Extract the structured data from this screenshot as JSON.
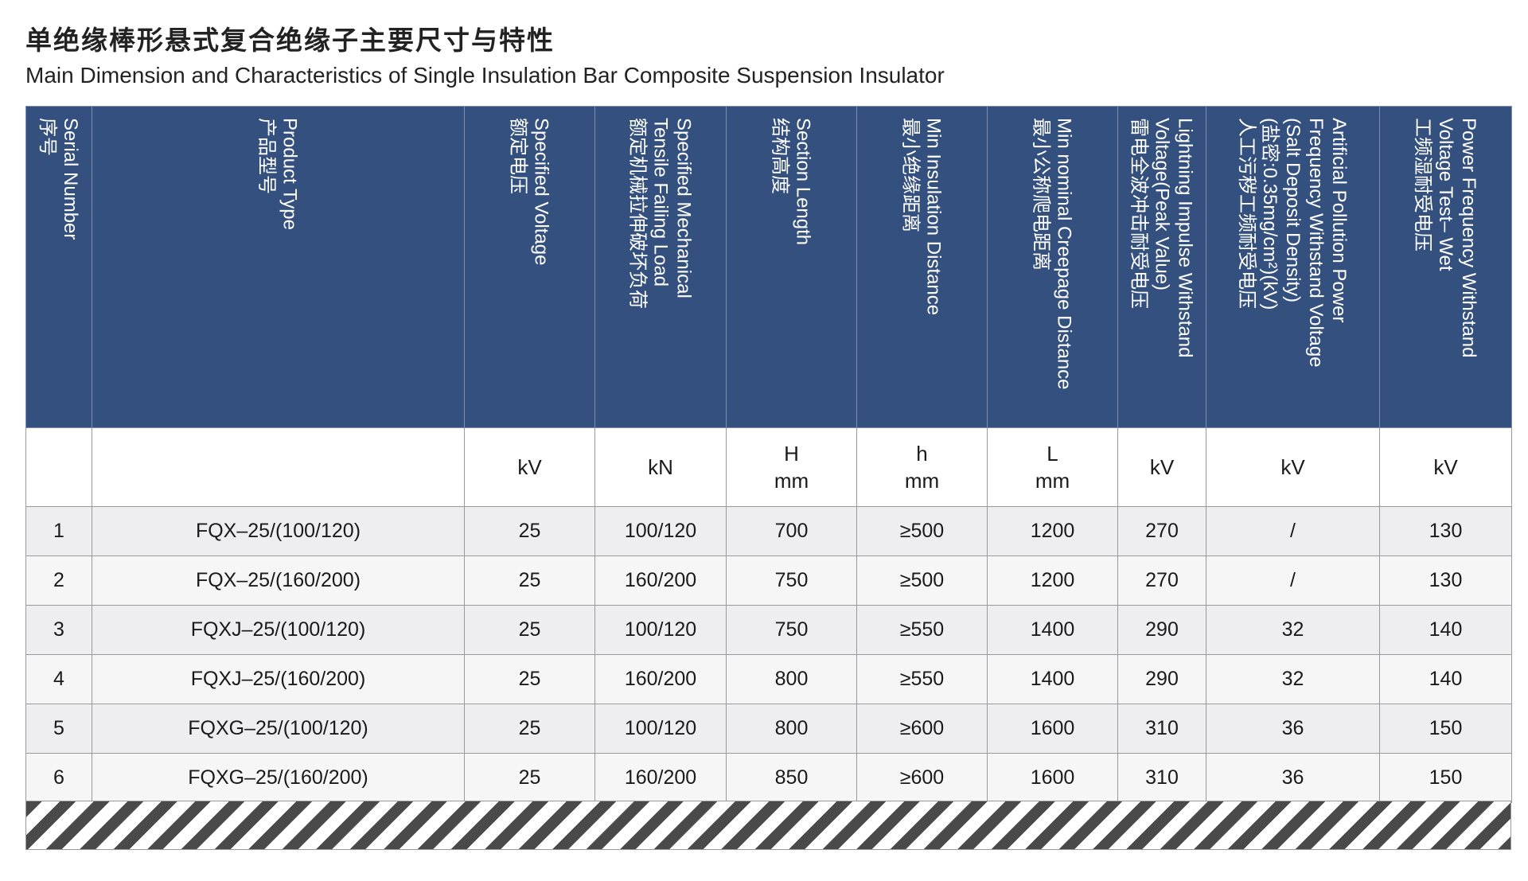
{
  "header": {
    "title": "单绝缘棒形悬式复合绝缘子主要尺寸与特性",
    "subtitle": "Main Dimension and Characteristics of Single Insulation Bar Composite Suspension Insulator"
  },
  "table": {
    "columns": [
      [
        "Serial Number",
        "序号"
      ],
      [
        "Product Type",
        "产品型号"
      ],
      [
        "Specified Voltage",
        "额定电压"
      ],
      [
        "Specified Mechanical",
        "Tensile Failing Load",
        "额定机械拉伸破坏负荷"
      ],
      [
        "Section Length",
        "结构高度"
      ],
      [
        "Min Insulation Distance",
        "最小绝缘距离"
      ],
      [
        "Min nominal Creepage Distance",
        "最小公称爬电距离"
      ],
      [
        "Lightning Impulse Withstand",
        "Voltage(Peak Value)",
        "雷电全波冲击耐受电压"
      ],
      [
        "Artificial Pollution Power",
        "Frequency Withstand Voltage",
        "(Salt Deposit Density)",
        "(盐密:0.35mg/cm²)(kV)",
        "人工污秽工频耐受电压"
      ],
      [
        "Power Frequency Withstand",
        "Voltage Test– Wet",
        "工频湿耐受电压"
      ]
    ],
    "units": [
      [
        "kV"
      ],
      [
        "kN"
      ],
      [
        "H",
        "mm"
      ],
      [
        "h",
        "mm"
      ],
      [
        "L",
        "mm"
      ],
      [
        "kV"
      ],
      [
        "kV"
      ],
      [
        "kV"
      ]
    ],
    "rows": [
      [
        "1",
        "FQX–25/(100/120)",
        "25",
        "100/120",
        "700",
        "≥500",
        "1200",
        "270",
        "/",
        "130"
      ],
      [
        "2",
        "FQX–25/(160/200)",
        "25",
        "160/200",
        "750",
        "≥500",
        "1200",
        "270",
        "/",
        "130"
      ],
      [
        "3",
        "FQXJ–25/(100/120)",
        "25",
        "100/120",
        "750",
        "≥550",
        "1400",
        "290",
        "32",
        "140"
      ],
      [
        "4",
        "FQXJ–25/(160/200)",
        "25",
        "160/200",
        "800",
        "≥550",
        "1400",
        "290",
        "32",
        "140"
      ],
      [
        "5",
        "FQXG–25/(100/120)",
        "25",
        "100/120",
        "800",
        "≥600",
        "1600",
        "310",
        "36",
        "150"
      ],
      [
        "6",
        "FQXG–25/(160/200)",
        "25",
        "160/200",
        "850",
        "≥600",
        "1600",
        "310",
        "36",
        "150"
      ]
    ]
  }
}
